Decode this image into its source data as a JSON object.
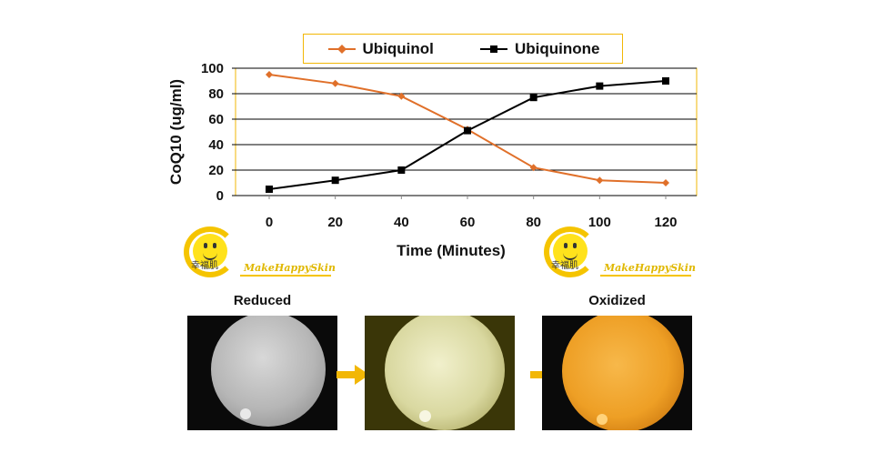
{
  "chart_data": {
    "type": "line",
    "x": [
      0,
      20,
      40,
      60,
      80,
      100,
      120
    ],
    "xlabel": "Time (Minutes)",
    "ylabel": "CoQ10 (ug/ml)",
    "ylim": [
      0,
      100
    ],
    "yticks": [
      "0",
      "20",
      "40",
      "60",
      "80",
      "100"
    ],
    "xticks": [
      "0",
      "20",
      "40",
      "60",
      "80",
      "100",
      "120"
    ],
    "grid": true,
    "legend": "top",
    "series": [
      {
        "name": "Ubiquinol",
        "color": "#e0702a",
        "marker": "diamond",
        "values": [
          95,
          88,
          78,
          52,
          22,
          12,
          10
        ]
      },
      {
        "name": "Ubiquinone",
        "color": "#000000",
        "marker": "square",
        "values": [
          5,
          12,
          20,
          51,
          77,
          86,
          90
        ]
      }
    ]
  },
  "images": {
    "reduced_caption": "Reduced",
    "oxidized_caption": "Oxidized",
    "logo_text": "幸福肌",
    "brand_text": "MakeHappySkin"
  },
  "colors": {
    "accent_yellow": "#f5c400",
    "arrow": "#f2b705",
    "plot_border": "#f2b705"
  },
  "icons": {
    "logo_face": "smiley-face-icon",
    "arrow": "right-arrow-icon"
  }
}
